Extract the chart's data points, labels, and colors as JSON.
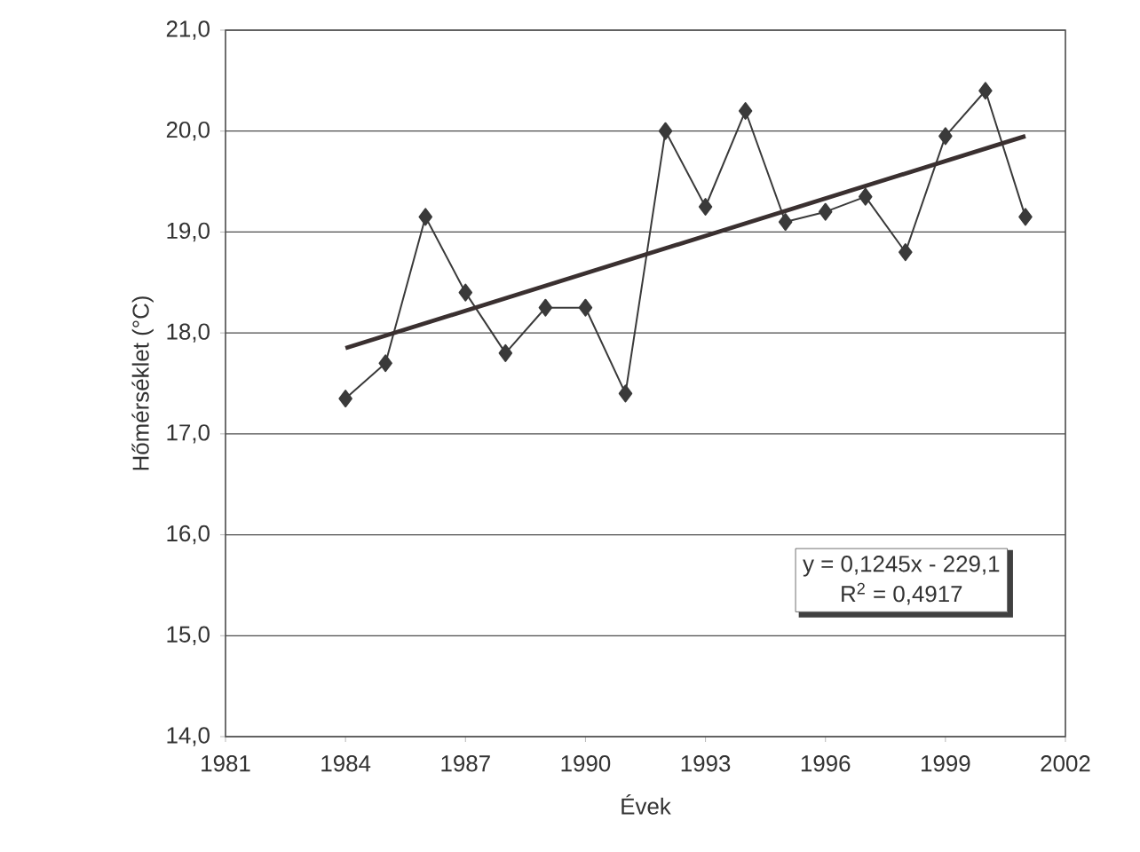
{
  "chart_data": {
    "type": "line",
    "xlabel": "Évek",
    "ylabel": "Hőmérséklet (°C)",
    "x": [
      1984,
      1985,
      1986,
      1987,
      1988,
      1989,
      1990,
      1991,
      1992,
      1993,
      1994,
      1995,
      1996,
      1997,
      1998,
      1999,
      2000,
      2001
    ],
    "series": [
      {
        "color": "#3a3a3a",
        "marker": "diamond",
        "values": [
          17.35,
          17.7,
          19.15,
          18.4,
          17.8,
          18.25,
          18.25,
          17.4,
          20.0,
          19.25,
          20.2,
          19.1,
          19.2,
          19.35,
          18.8,
          19.95,
          20.4,
          19.15
        ]
      },
      {
        "type": "line",
        "color": "#3a3030",
        "marker": "none",
        "x": [
          1984,
          2001
        ],
        "values": [
          17.85,
          19.95
        ]
      }
    ],
    "xlim": [
      1981,
      2002
    ],
    "xticks": [
      1981,
      1984,
      1987,
      1990,
      1993,
      1996,
      1999,
      2002
    ],
    "ylim": [
      14,
      21
    ],
    "yticks": [
      {
        "value": 14,
        "label": "14,0"
      },
      {
        "value": 15,
        "label": "15,0"
      },
      {
        "value": 16,
        "label": "16,0"
      },
      {
        "value": 17,
        "label": "17,0"
      },
      {
        "value": 18,
        "label": "18,0"
      },
      {
        "value": 19,
        "label": "19,0"
      },
      {
        "value": 20,
        "label": "20,0"
      },
      {
        "value": 21,
        "label": "21,0"
      }
    ],
    "grid": "y",
    "annotations": [
      "y = 0,1245x - 229,1",
      "R$^{2}$ = 0,4917"
    ]
  }
}
